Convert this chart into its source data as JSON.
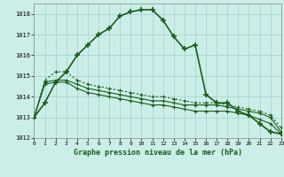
{
  "title": "Graphe pression niveau de la mer (hPa)",
  "background_color": "#cceee8",
  "grid_color": "#aad4ce",
  "line_color": "#1a5c1a",
  "series1": {
    "x": [
      0,
      1,
      2,
      3,
      4,
      5,
      6,
      7,
      8,
      9,
      10,
      11,
      12,
      13,
      14,
      15,
      16,
      17,
      18,
      19,
      20,
      21,
      22,
      23
    ],
    "y": [
      1013.0,
      1013.7,
      1014.7,
      1015.2,
      1016.0,
      1016.5,
      1017.0,
      1017.3,
      1017.9,
      1018.1,
      1018.2,
      1018.2,
      1017.7,
      1016.9,
      1016.3,
      1016.5,
      1014.1,
      1013.7,
      1013.7,
      1013.3,
      1013.1,
      1012.7,
      1012.3,
      1012.2
    ]
  },
  "series2": {
    "x": [
      0,
      1,
      2,
      3,
      4,
      5,
      6,
      7,
      8,
      9,
      10,
      11,
      12,
      13,
      14,
      15,
      16,
      17,
      18,
      19,
      20,
      21,
      22,
      23
    ],
    "y": [
      1013.0,
      1014.8,
      1015.2,
      1015.2,
      1014.8,
      1014.6,
      1014.5,
      1014.4,
      1014.3,
      1014.2,
      1014.1,
      1014.0,
      1014.0,
      1013.9,
      1013.8,
      1013.7,
      1013.7,
      1013.7,
      1013.6,
      1013.5,
      1013.4,
      1013.3,
      1013.1,
      1012.5
    ]
  },
  "series3": {
    "x": [
      0,
      1,
      2,
      3,
      4,
      5,
      6,
      7,
      8,
      9,
      10,
      11,
      12,
      13,
      14,
      15,
      16,
      17,
      18,
      19,
      20,
      21,
      22,
      23
    ],
    "y": [
      1013.0,
      1014.7,
      1014.8,
      1014.8,
      1014.6,
      1014.4,
      1014.3,
      1014.2,
      1014.1,
      1014.0,
      1013.9,
      1013.8,
      1013.8,
      1013.7,
      1013.6,
      1013.6,
      1013.6,
      1013.6,
      1013.5,
      1013.4,
      1013.3,
      1013.2,
      1013.0,
      1012.3
    ]
  },
  "series4": {
    "x": [
      0,
      1,
      2,
      3,
      4,
      5,
      6,
      7,
      8,
      9,
      10,
      11,
      12,
      13,
      14,
      15,
      16,
      17,
      18,
      19,
      20,
      21,
      22,
      23
    ],
    "y": [
      1013.0,
      1014.6,
      1014.7,
      1014.7,
      1014.4,
      1014.2,
      1014.1,
      1014.0,
      1013.9,
      1013.8,
      1013.7,
      1013.6,
      1013.6,
      1013.5,
      1013.4,
      1013.3,
      1013.3,
      1013.3,
      1013.3,
      1013.2,
      1013.1,
      1012.9,
      1012.7,
      1012.2
    ]
  },
  "xlim": [
    0,
    23
  ],
  "ylim": [
    1012,
    1018.5
  ],
  "yticks": [
    1012,
    1013,
    1014,
    1015,
    1016,
    1017,
    1018
  ],
  "xticks": [
    0,
    1,
    2,
    3,
    4,
    5,
    6,
    7,
    8,
    9,
    10,
    11,
    12,
    13,
    14,
    15,
    16,
    17,
    18,
    19,
    20,
    21,
    22,
    23
  ]
}
